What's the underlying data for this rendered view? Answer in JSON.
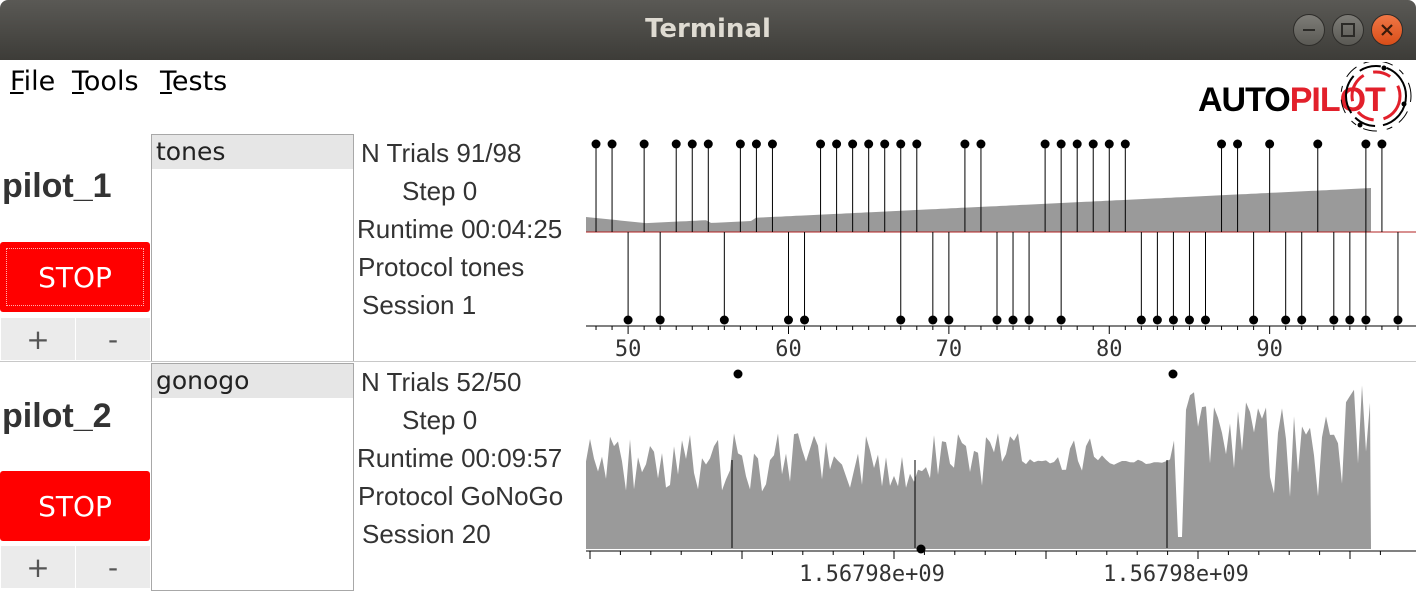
{
  "window": {
    "title": "Terminal"
  },
  "menu": [
    {
      "accel": "F",
      "rest": "ile"
    },
    {
      "accel": "T",
      "rest": "ools"
    },
    {
      "accel": "T",
      "rest": "ests"
    }
  ],
  "logo": {
    "text": "AUTOPILOT",
    "part1": "AUTO",
    "part2": "PILOT",
    "accent": "#e2202b"
  },
  "colors": {
    "stop": "#ff0000",
    "fill": "#9a9a9a",
    "redline": "#b22222"
  },
  "pilots": [
    {
      "name": "pilot_1",
      "stop_label": "STOP",
      "plus_label": "+",
      "minus_label": "-",
      "protocols": [
        "tones"
      ],
      "info": {
        "n_trials_label": "N Trials",
        "n_trials_value": "91/98",
        "step_label": "Step",
        "step_value": "0",
        "runtime_label": "Runtime",
        "runtime_value": "00:04:25",
        "protocol_label": "Protocol",
        "protocol_value": "tones",
        "session_label": "Session",
        "session_value": "1"
      },
      "x_ticks": [
        "50",
        "60",
        "70",
        "80",
        "90"
      ]
    },
    {
      "name": "pilot_2",
      "stop_label": "STOP",
      "plus_label": "+",
      "minus_label": "-",
      "protocols": [
        "gonogo"
      ],
      "info": {
        "n_trials_label": "N Trials",
        "n_trials_value": "52/50",
        "step_label": "Step",
        "step_value": "0",
        "runtime_label": "Runtime",
        "runtime_value": "00:09:57",
        "protocol_label": "Protocol",
        "protocol_value": "GoNoGo",
        "session_label": "Session",
        "session_value": "20"
      },
      "x_ticks": [
        "1.56798e+09",
        "1.56798e+09"
      ]
    }
  ],
  "chart_data": [
    {
      "type": "scatter",
      "title": "",
      "xlim": [
        47.5,
        99
      ],
      "x_ticks": [
        50,
        60,
        70,
        80,
        90
      ],
      "series": [
        {
          "values": [
            48,
            49,
            51,
            53,
            54,
            55,
            57,
            58,
            59,
            62,
            63,
            64,
            65,
            66,
            67,
            68,
            71,
            72,
            76,
            77,
            78,
            79,
            80,
            81,
            87,
            88,
            90,
            93,
            96,
            97
          ],
          "outcome": "top"
        },
        {
          "values": [
            50,
            52,
            56,
            60,
            61,
            67,
            69,
            70,
            73,
            74,
            75,
            77,
            82,
            83,
            84,
            85,
            86,
            89,
            91,
            92,
            94,
            95,
            96,
            98
          ],
          "outcome": "bottom"
        }
      ]
    },
    {
      "type": "area",
      "title": "",
      "x_ticks": [
        "1.56798e+09",
        "1.56798e+09"
      ]
    }
  ]
}
